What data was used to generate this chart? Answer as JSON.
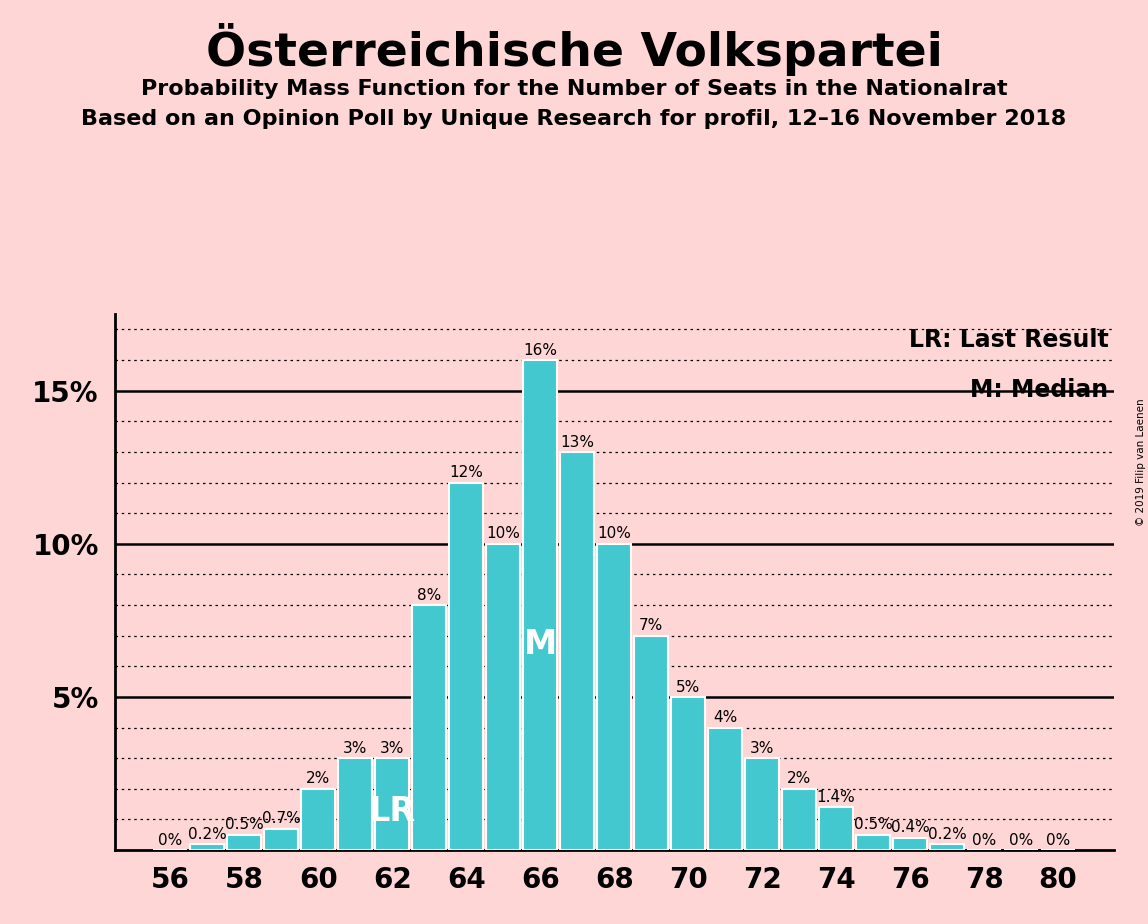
{
  "title": "Österreichische Volkspartei",
  "subtitle1": "Probability Mass Function for the Number of Seats in the Nationalrat",
  "subtitle2": "Based on an Opinion Poll by Unique Research for profil, 12–16 November 2018",
  "copyright": "© 2019 Filip van Laenen",
  "legend_lr": "LR: Last Result",
  "legend_m": "M: Median",
  "bar_color": "#44C8D0",
  "bar_edge_color": "#ffffff",
  "background_color": "#FFD6D6",
  "seats": [
    56,
    57,
    58,
    59,
    60,
    61,
    62,
    63,
    64,
    65,
    66,
    67,
    68,
    69,
    70,
    71,
    72,
    73,
    74,
    75,
    76,
    77,
    78,
    79,
    80
  ],
  "probabilities": [
    0.0,
    0.002,
    0.005,
    0.007,
    0.02,
    0.03,
    0.03,
    0.08,
    0.12,
    0.1,
    0.16,
    0.13,
    0.1,
    0.07,
    0.05,
    0.04,
    0.03,
    0.02,
    0.014,
    0.005,
    0.004,
    0.002,
    0.0,
    0.0,
    0.0
  ],
  "labels": [
    "0%",
    "0.2%",
    "0.5%",
    "0.7%",
    "2%",
    "3%",
    "3%",
    "8%",
    "12%",
    "10%",
    "16%",
    "13%",
    "10%",
    "7%",
    "5%",
    "4%",
    "3%",
    "2%",
    "1.4%",
    "0.5%",
    "0.4%",
    "0.2%",
    "0%",
    "0%",
    "0%"
  ],
  "lr_seat": 62,
  "median_seat": 66,
  "ylim": [
    0,
    0.175
  ],
  "yticks": [
    0.05,
    0.1,
    0.15
  ],
  "ytick_labels": [
    "5%",
    "10%",
    "15%"
  ],
  "xticks": [
    56,
    58,
    60,
    62,
    64,
    66,
    68,
    70,
    72,
    74,
    76,
    78,
    80
  ],
  "title_fontsize": 34,
  "subtitle_fontsize": 16,
  "tick_fontsize": 20,
  "label_fontsize": 11
}
